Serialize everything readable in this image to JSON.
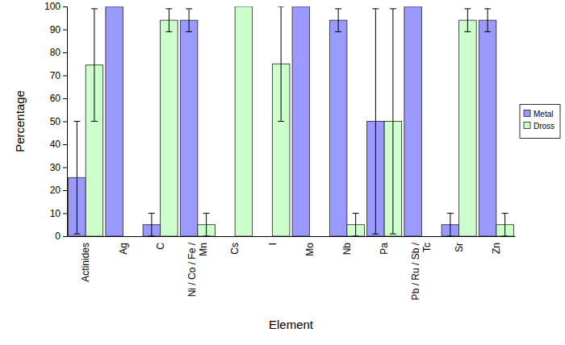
{
  "chart_data": {
    "type": "bar",
    "x_label": "Element",
    "y_label": "Percentage",
    "categories": [
      "Actinides",
      "Ag",
      "C",
      "Ni / Co / Fe / Mn",
      "Cs",
      "I",
      "Mo",
      "Nb",
      "Pa",
      "Pb / Ru / Sb / Tc",
      "Sr",
      "Zn"
    ],
    "series": [
      {
        "name": "Metal",
        "color": "#9999ff",
        "values": [
          25.5,
          100,
          5,
          94,
          0,
          0,
          100,
          94,
          50,
          100,
          5,
          94
        ],
        "errors": [
          24.5,
          null,
          5,
          5,
          null,
          null,
          null,
          5,
          49,
          null,
          5,
          5
        ]
      },
      {
        "name": "Dross",
        "color": "#ccffcc",
        "values": [
          74.5,
          0,
          94,
          5,
          100,
          75,
          0,
          5,
          50,
          0,
          94,
          5
        ],
        "errors": [
          24.5,
          null,
          5,
          5,
          null,
          25,
          null,
          5,
          49,
          null,
          5,
          5
        ]
      }
    ],
    "ylim": [
      0,
      100
    ],
    "yticks": [
      0,
      10,
      20,
      30,
      40,
      50,
      60,
      70,
      80,
      90,
      100
    ],
    "legend": "right"
  }
}
